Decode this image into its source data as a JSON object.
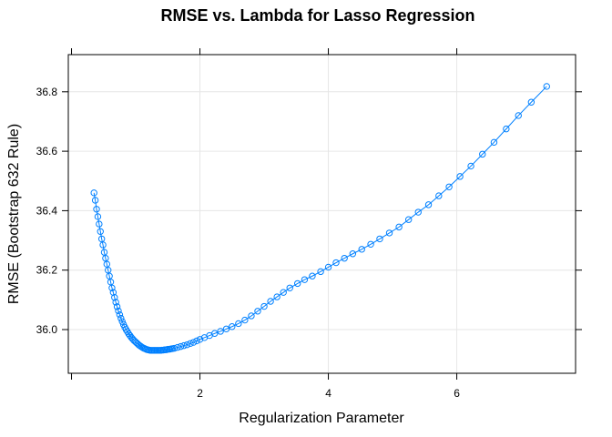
{
  "chart_data": {
    "type": "line",
    "title": "RMSE vs. Lambda for Lasso Regression",
    "xlabel": "Regularization Parameter",
    "ylabel": "RMSE (Bootstrap 632 Rule)",
    "xlim": [
      -0.05,
      7.85
    ],
    "ylim": [
      35.853,
      36.925
    ],
    "x_ticks": [
      2,
      4,
      6
    ],
    "x_tick_labels": [
      "2",
      "4",
      "6"
    ],
    "y_ticks": [
      36.0,
      36.2,
      36.4,
      36.6,
      36.8
    ],
    "y_tick_labels": [
      "36.0",
      "36.2",
      "36.4",
      "36.6",
      "36.8"
    ],
    "grid": true,
    "marker": "open-circle",
    "series_color": "#0080ff",
    "series": [
      {
        "x": [
          0.35,
          0.37,
          0.39,
          0.41,
          0.43,
          0.45,
          0.47,
          0.49,
          0.51,
          0.53,
          0.55,
          0.57,
          0.59,
          0.61,
          0.63,
          0.65,
          0.67,
          0.69,
          0.71,
          0.73,
          0.75,
          0.77,
          0.79,
          0.81,
          0.83,
          0.85,
          0.87,
          0.89,
          0.91,
          0.93,
          0.95,
          0.97,
          0.99,
          1.01,
          1.03,
          1.05,
          1.07,
          1.09,
          1.11,
          1.13,
          1.15,
          1.17,
          1.19,
          1.21,
          1.23,
          1.25,
          1.27,
          1.29,
          1.31,
          1.33,
          1.35,
          1.37,
          1.39,
          1.41,
          1.43,
          1.45,
          1.47,
          1.49,
          1.51,
          1.53,
          1.55,
          1.57,
          1.6,
          1.65,
          1.7,
          1.75,
          1.8,
          1.85,
          1.9,
          1.95,
          2.0,
          2.07,
          2.15,
          2.23,
          2.32,
          2.41,
          2.5,
          2.6,
          2.7,
          2.8,
          2.9,
          3.0,
          3.1,
          3.2,
          3.3,
          3.4,
          3.52,
          3.63,
          3.75,
          3.88,
          4.0,
          4.12,
          4.25,
          4.38,
          4.52,
          4.66,
          4.8,
          4.95,
          5.1,
          5.25,
          5.4,
          5.56,
          5.72,
          5.88,
          6.05,
          6.22,
          6.4,
          6.58,
          6.77,
          6.96,
          7.16,
          7.4
        ],
        "y": [
          36.46,
          36.435,
          36.405,
          36.38,
          36.355,
          36.33,
          36.305,
          36.285,
          36.26,
          36.24,
          36.22,
          36.2,
          36.18,
          36.16,
          36.14,
          36.125,
          36.108,
          36.092,
          36.077,
          36.063,
          36.05,
          36.038,
          36.027,
          36.017,
          36.008,
          36.0,
          35.993,
          35.986,
          35.98,
          35.974,
          35.969,
          35.964,
          35.96,
          35.956,
          35.952,
          35.948,
          35.945,
          35.942,
          35.939,
          35.937,
          35.935,
          35.933,
          35.932,
          35.931,
          35.93,
          35.93,
          35.93,
          35.93,
          35.93,
          35.93,
          35.93,
          35.93,
          35.93,
          35.931,
          35.931,
          35.932,
          35.932,
          35.933,
          35.934,
          35.934,
          35.935,
          35.936,
          35.937,
          35.94,
          35.943,
          35.946,
          35.949,
          35.953,
          35.957,
          35.962,
          35.967,
          35.973,
          35.98,
          35.987,
          35.994,
          36.002,
          36.01,
          36.02,
          36.032,
          36.046,
          36.062,
          36.078,
          36.095,
          36.11,
          36.125,
          36.14,
          36.155,
          36.168,
          36.18,
          36.195,
          36.21,
          36.225,
          36.24,
          36.255,
          36.27,
          36.287,
          36.305,
          36.325,
          36.345,
          36.37,
          36.395,
          36.42,
          36.45,
          36.48,
          36.515,
          36.55,
          36.59,
          36.63,
          36.675,
          36.72,
          36.765,
          36.818
        ]
      }
    ]
  }
}
